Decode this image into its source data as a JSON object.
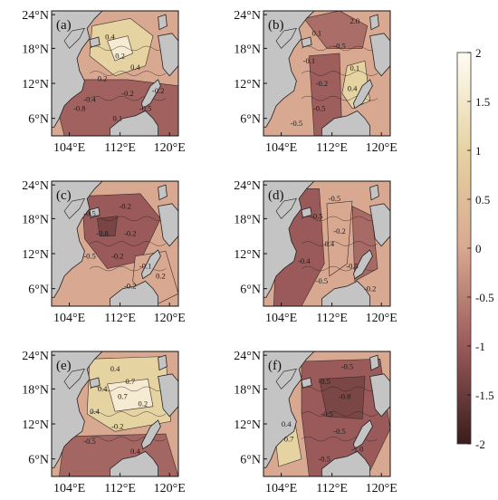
{
  "panels": [
    {
      "id": "a",
      "label": "(a)",
      "contour_labels": [
        "0.4",
        "0.2",
        "0.4",
        "0.2",
        "-0.2",
        "-0.4",
        "-0.8",
        "-0.5",
        "-0.2",
        "0.1"
      ]
    },
    {
      "id": "b",
      "label": "(b)",
      "contour_labels": [
        "2.0",
        "0.1",
        "-0.5",
        "-0.1",
        "0.1",
        "-0.2",
        "0.4",
        "-0.5",
        "-0.5"
      ]
    },
    {
      "id": "c",
      "label": "(c)",
      "contour_labels": [
        "-0.5",
        "-0.2",
        "-0.8",
        "-0.2",
        "-0.5",
        "-0.2",
        "-0.1",
        "0.2",
        "-0.2"
      ]
    },
    {
      "id": "d",
      "label": "(d)",
      "contour_labels": [
        "-0.5",
        "-0.5",
        "-0.2",
        "0.4",
        "-0.4",
        "-0.5",
        "-0.5",
        "-0.2"
      ]
    },
    {
      "id": "e",
      "label": "(e)",
      "contour_labels": [
        "0.4",
        "0.7",
        "0.4",
        "0.7",
        "0.2",
        "0.4",
        "-0.2",
        "-0.5",
        "0.4"
      ]
    },
    {
      "id": "f",
      "label": "(f)",
      "contour_labels": [
        "-0.5",
        "-0.5",
        "-0.8",
        "-0.5",
        "0.4",
        "0.7",
        "-0.5",
        "-1.0",
        "-0.5"
      ]
    }
  ],
  "lat_ticks": [
    "24°N",
    "18°N",
    "12°N",
    "6°N"
  ],
  "lon_ticks": [
    "104°E",
    "112°E",
    "120°E"
  ],
  "colorbar": {
    "min": -2,
    "max": 2,
    "ticks": [
      "2",
      "1.5",
      "1",
      "0.5",
      "0",
      "-0.5",
      "-1",
      "-1.5",
      "-2"
    ]
  },
  "colors": {
    "land": "#c4c4c4",
    "negative_strong": "#3a1c1c",
    "negative_mid": "#9a5a5a",
    "neutral": "#d9a890",
    "positive_mid": "#e6d3a2",
    "positive_strong": "#fffcf3"
  }
}
